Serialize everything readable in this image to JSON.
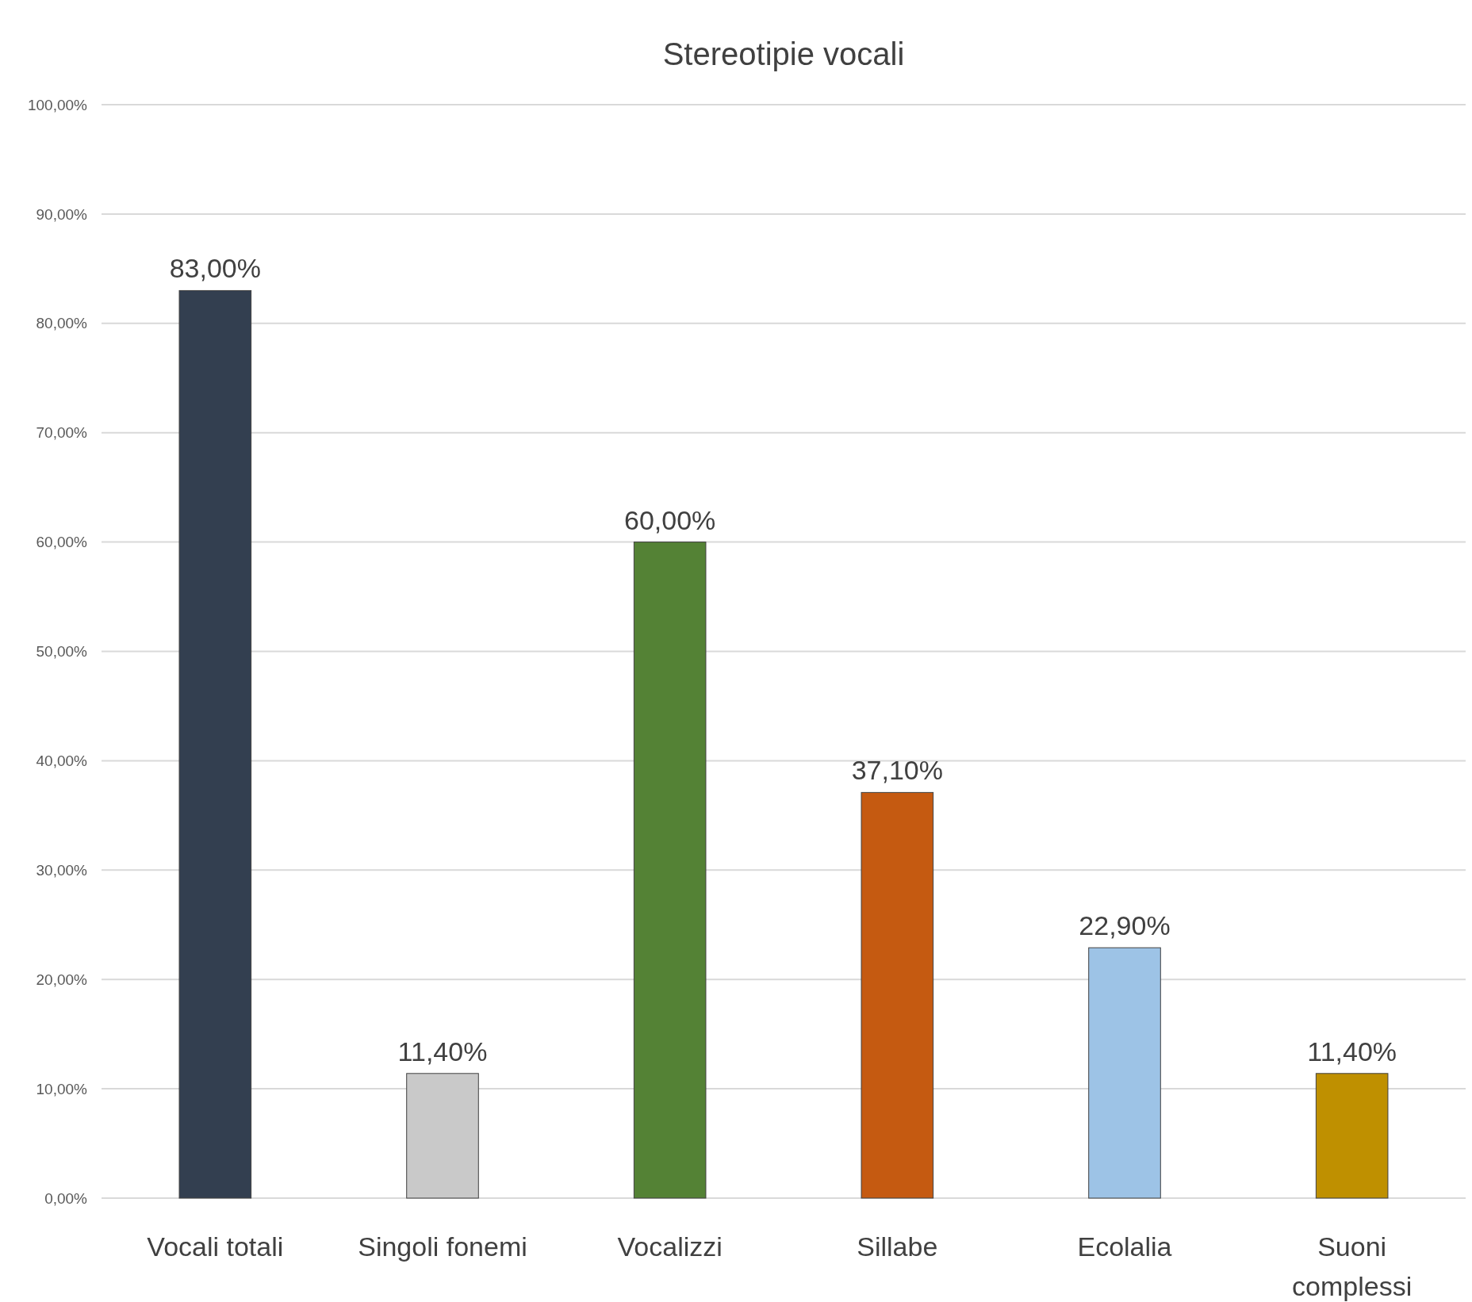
{
  "chart_data": {
    "type": "bar",
    "title": "Stereotipie vocali",
    "categories": [
      "Vocali totali",
      "Singoli fonemi",
      "Vocalizzi",
      "Sillabe",
      "Ecolalia",
      "Suoni complessi"
    ],
    "values": [
      83,
      11.4,
      60,
      37.1,
      22.9,
      11.4
    ],
    "colors": [
      "#333f50",
      "#c9c9c9",
      "#548235",
      "#c55a11",
      "#9dc3e6",
      "#bf9000"
    ],
    "value_labels": [
      "83,00%",
      "11,40%",
      "60,00%",
      "37,10%",
      "22,90%",
      "11,40%"
    ],
    "ylim": [
      0,
      100
    ],
    "yticks": [
      {
        "value": 0,
        "label": "0,00%"
      },
      {
        "value": 10,
        "label": "10,00%"
      },
      {
        "value": 20,
        "label": "20,00%"
      },
      {
        "value": 30,
        "label": "30,00%"
      },
      {
        "value": 40,
        "label": "40,00%"
      },
      {
        "value": 50,
        "label": "50,00%"
      },
      {
        "value": 60,
        "label": "60,00%"
      },
      {
        "value": 70,
        "label": "70,00%"
      },
      {
        "value": 80,
        "label": "80,00%"
      },
      {
        "value": 90,
        "label": "90,00%"
      },
      {
        "value": 100,
        "label": "100,00%"
      }
    ],
    "grid": "y"
  }
}
